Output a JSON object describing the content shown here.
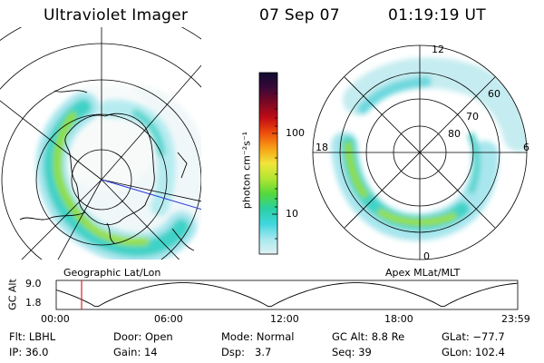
{
  "header": {
    "instrument": "Ultraviolet Imager",
    "date": "07 Sep 07",
    "time": "01:19:19 UT"
  },
  "left_map": {
    "label": "Geographic Lat/Lon"
  },
  "right_map": {
    "label": "Apex MLat/MLT",
    "lat_labels": [
      "60",
      "70",
      "80"
    ],
    "mlt_labels": {
      "top": "12",
      "left": "18",
      "right": "6",
      "bottom": "0"
    }
  },
  "colorbar": {
    "unit_label": "photon cm⁻²s⁻¹",
    "tick_labels": [
      "100",
      "10"
    ],
    "colors": [
      "#0d0b2e",
      "#3a0838",
      "#7c0822",
      "#c20c16",
      "#ef4d0c",
      "#f7a015",
      "#f1e53a",
      "#b2e632",
      "#55d83a",
      "#2ad0a4",
      "#40d6de",
      "#a6e8ee",
      "#dff2f4"
    ]
  },
  "altitude_strip": {
    "axis_label": "GC Alt",
    "y_ticks": [
      "9.0",
      "1.8"
    ],
    "x_ticks": [
      "00:00",
      "06:00",
      "12:00",
      "18:00",
      "23:59"
    ],
    "current_time_fraction": 0.055,
    "marker_color": "#e02020"
  },
  "status": {
    "filter": {
      "label": "Flt:",
      "value": "LBHL"
    },
    "ip": {
      "label": "IP:",
      "value": "36.0"
    },
    "door": {
      "label": "Door:",
      "value": "Open"
    },
    "gain": {
      "label": "Gain:",
      "value": "14"
    },
    "mode": {
      "label": "Mode:",
      "value": "Normal"
    },
    "dsp": {
      "label": "Dsp:",
      "value": "3.7"
    },
    "gc_alt": {
      "label": "GC Alt:",
      "value": "8.8 Re"
    },
    "seq": {
      "label": "Seq:",
      "value": "39"
    },
    "glat": {
      "label": "GLat:",
      "value": "−77.7"
    },
    "glon": {
      "label": "GLon:",
      "value": "102.4"
    }
  }
}
